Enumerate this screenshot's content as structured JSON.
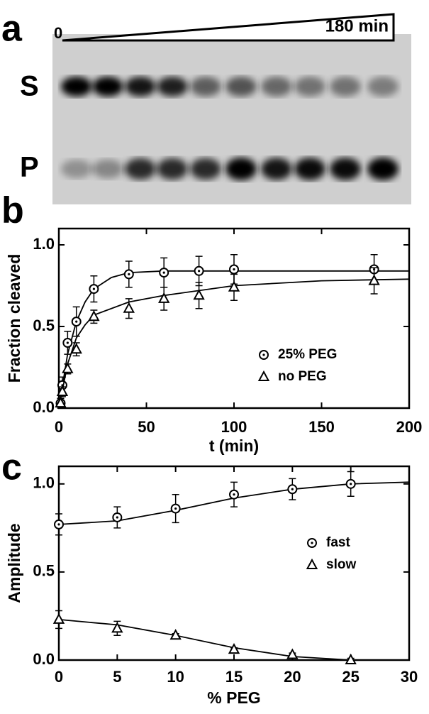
{
  "gel": {
    "panel": "a",
    "start_label": "0",
    "end_label": "180 min",
    "band_labels": [
      "S",
      "P"
    ]
  },
  "chart_data": [
    {
      "type": "scatter",
      "panel": "b",
      "xlabel": "t (min)",
      "ylabel": "Fraction cleaved",
      "xlim": [
        0,
        200
      ],
      "xticks": [
        0,
        50,
        100,
        150,
        200
      ],
      "ylim": [
        0,
        1.1
      ],
      "yticks": [
        {
          "value": 0,
          "label": "0.0"
        },
        {
          "value": 0.5,
          "label": "0.5"
        },
        {
          "value": 1,
          "label": "1.0"
        }
      ],
      "legend": "center right",
      "series": [
        {
          "name": "25% PEG",
          "color": "#000000",
          "marker": "circle-dot",
          "x": [
            1,
            2,
            5,
            10,
            20,
            40,
            60,
            80,
            100,
            180
          ],
          "values": [
            0.03,
            0.14,
            0.4,
            0.53,
            0.73,
            0.82,
            0.83,
            0.84,
            0.85,
            0.85
          ],
          "errors": [
            0.03,
            0.05,
            0.07,
            0.09,
            0.08,
            0.08,
            0.09,
            0.09,
            0.09,
            0.09
          ],
          "fit": {
            "x": [
              0,
              5,
              10,
              15,
              20,
              30,
              40,
              60,
              100,
              200
            ],
            "values": [
              0,
              0.33,
              0.53,
              0.65,
              0.73,
              0.8,
              0.83,
              0.84,
              0.84,
              0.84
            ]
          }
        },
        {
          "name": "no PEG",
          "color": "#000000",
          "marker": "triangle",
          "x": [
            1,
            2,
            5,
            10,
            20,
            40,
            60,
            80,
            100,
            180
          ],
          "values": [
            0.03,
            0.1,
            0.24,
            0.36,
            0.56,
            0.61,
            0.67,
            0.69,
            0.74,
            0.78
          ],
          "errors": [
            0.02,
            0.03,
            0.03,
            0.04,
            0.04,
            0.06,
            0.07,
            0.08,
            0.08,
            0.08
          ],
          "fit": {
            "x": [
              0,
              5,
              10,
              15,
              20,
              40,
              60,
              100,
              150,
              200
            ],
            "values": [
              0,
              0.27,
              0.43,
              0.51,
              0.57,
              0.65,
              0.69,
              0.75,
              0.78,
              0.79
            ]
          }
        }
      ]
    },
    {
      "type": "scatter",
      "panel": "c",
      "xlabel": "% PEG",
      "ylabel": "Amplitude",
      "xlim": [
        0,
        30
      ],
      "xticks": [
        0,
        5,
        10,
        15,
        20,
        25,
        30
      ],
      "ylim": [
        0,
        1.1
      ],
      "yticks": [
        {
          "value": 0,
          "label": "0.0"
        },
        {
          "value": 0.5,
          "label": "0.5"
        },
        {
          "value": 1,
          "label": "1.0"
        }
      ],
      "legend": "center right",
      "series": [
        {
          "name": "fast",
          "color": "#000000",
          "marker": "circle-dot",
          "x": [
            0,
            5,
            10,
            15,
            20,
            25
          ],
          "values": [
            0.77,
            0.81,
            0.86,
            0.94,
            0.97,
            1.0
          ],
          "errors": [
            0.06,
            0.06,
            0.08,
            0.07,
            0.06,
            0.07
          ],
          "fit": {
            "x": [
              0,
              5,
              10,
              15,
              20,
              25,
              30
            ],
            "values": [
              0.77,
              0.79,
              0.85,
              0.92,
              0.97,
              1.0,
              1.01
            ]
          }
        },
        {
          "name": "slow",
          "color": "#000000",
          "marker": "triangle",
          "x": [
            0,
            5,
            10,
            15,
            20,
            25
          ],
          "values": [
            0.23,
            0.18,
            0.14,
            0.06,
            0.03,
            0.0
          ],
          "errors": [
            0.05,
            0.04,
            0.01,
            0.01,
            0.01,
            0.01
          ],
          "fit": {
            "x": [
              0,
              5,
              10,
              15,
              20,
              25
            ],
            "values": [
              0.23,
              0.2,
              0.14,
              0.07,
              0.02,
              0
            ]
          }
        }
      ]
    }
  ]
}
